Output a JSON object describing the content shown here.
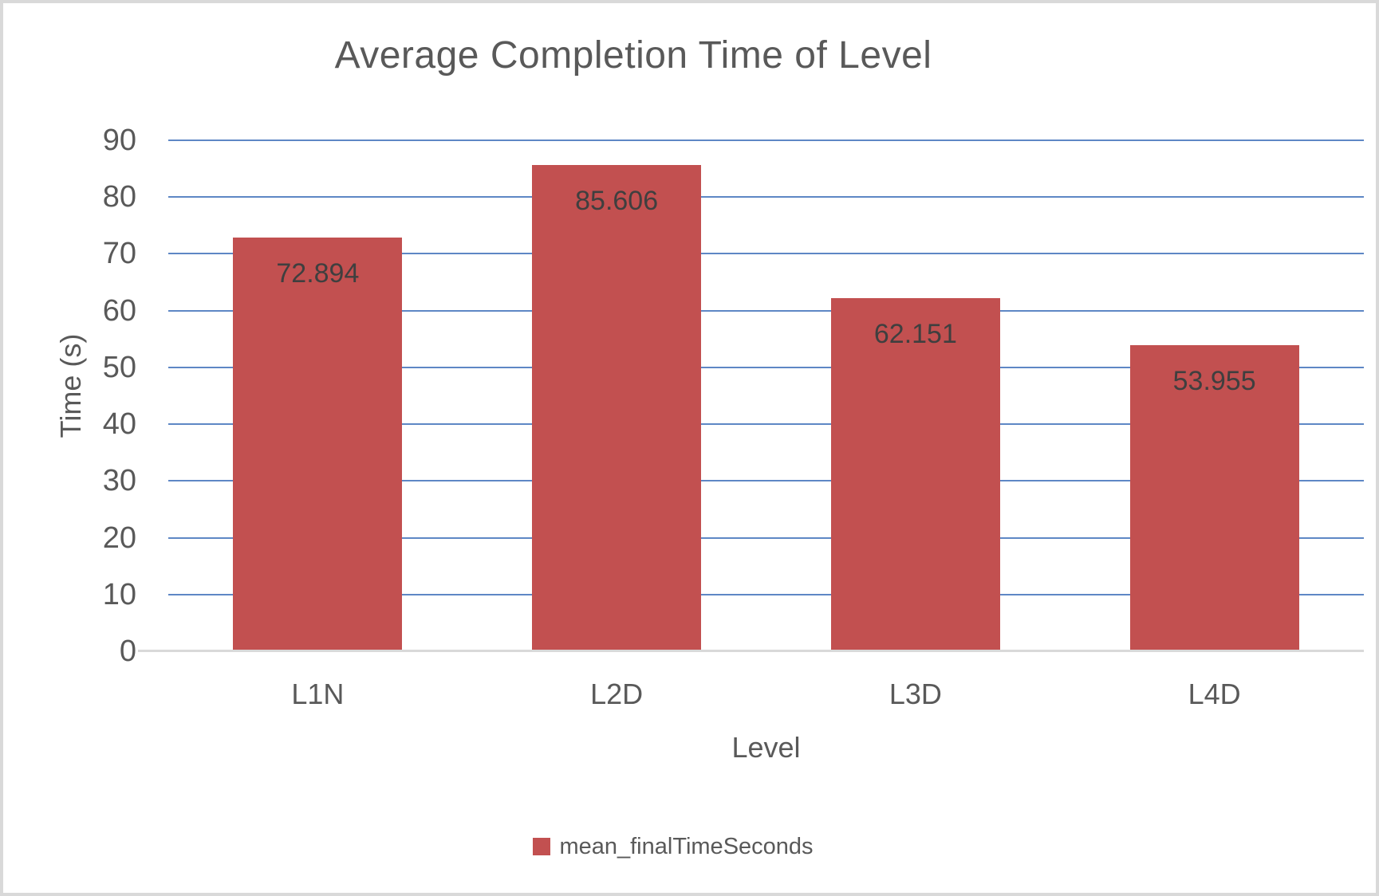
{
  "chart": {
    "title": "Average Completion Time of Level",
    "x_axis_title": "Level",
    "y_axis_title": "Time (s)",
    "legend": {
      "label": "mean_finalTimeSeconds",
      "position": "bottom"
    },
    "colors": {
      "bar": "#c25050",
      "gridline": "#5e87c5",
      "axis_line": "#d9d9d9",
      "title_text": "#595959",
      "axis_text": "#595959",
      "data_label_text": "#3f3f3f",
      "frame_border": "#d9d9d9"
    }
  },
  "chart_data": {
    "type": "bar",
    "title": "Average Completion Time of Level",
    "xlabel": "Level",
    "ylabel": "Time (s)",
    "categories": [
      "L1N",
      "L2D",
      "L3D",
      "L4D"
    ],
    "series": [
      {
        "name": "mean_finalTimeSeconds",
        "values": [
          72.894,
          85.606,
          62.151,
          53.955
        ],
        "data_labels": [
          "72.894",
          "85.606",
          "62.151",
          "53.955"
        ]
      }
    ],
    "ylim": [
      0,
      90
    ],
    "yticks": [
      0,
      10,
      20,
      30,
      40,
      50,
      60,
      70,
      80,
      90
    ],
    "grid": "horizontal",
    "data_label_position": "inside-end",
    "legend_position": "bottom"
  }
}
